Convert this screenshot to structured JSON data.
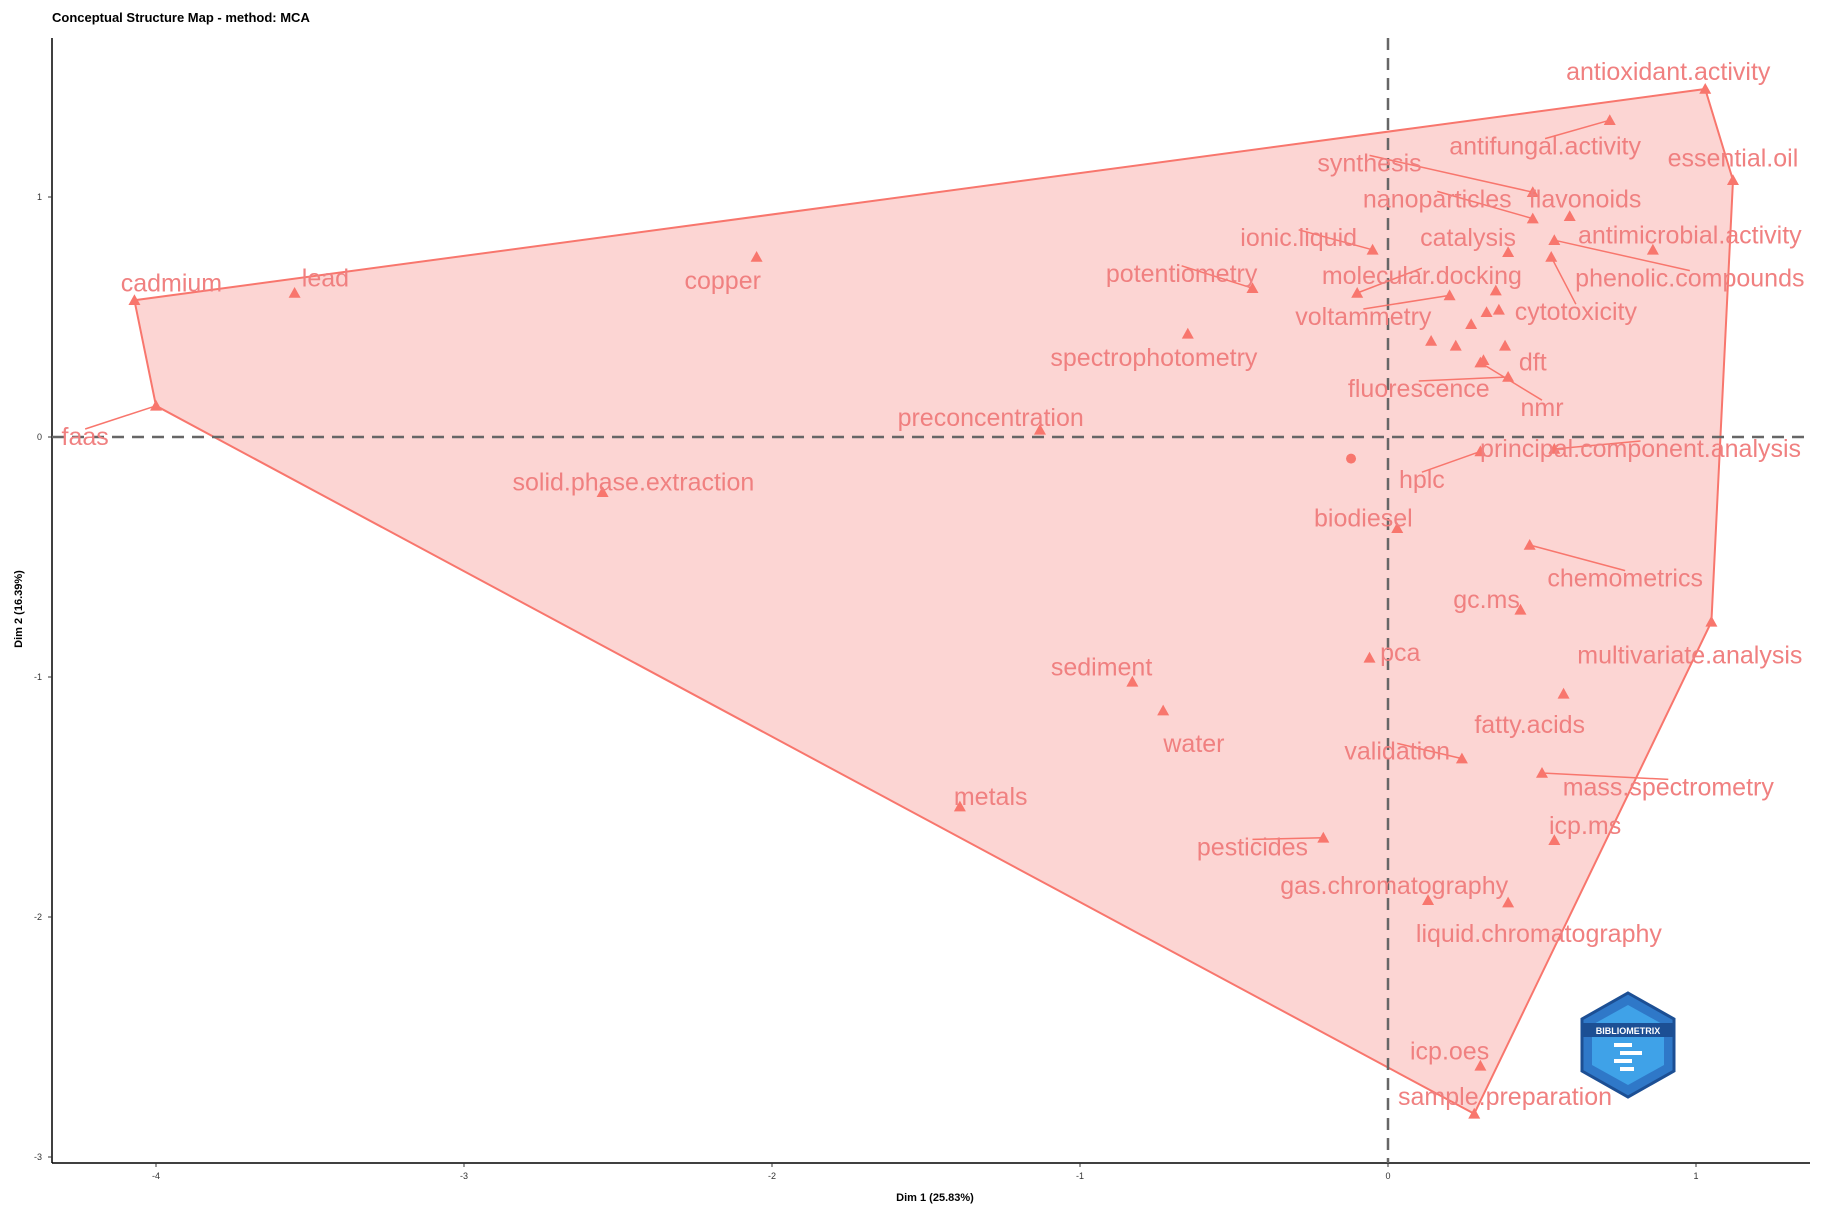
{
  "chart_data": {
    "type": "scatter",
    "title": "Conceptual Structure Map - method: MCA",
    "xlabel": "Dim 1 (25.83%)",
    "ylabel": "Dim 2 (16.39%)",
    "xlim": [
      -4.3,
      1.4
    ],
    "ylim": [
      -3.0,
      1.65
    ],
    "xticks": [
      -4,
      -3,
      -2,
      -1,
      0,
      1
    ],
    "yticks": [
      -3,
      -2,
      -1,
      0,
      1
    ],
    "grid": false,
    "hull_color": "#F8766D",
    "fill_color": "#FCD3D1",
    "label_color": "#F08080",
    "centroid": {
      "x": -0.12,
      "y": -0.09
    },
    "hull": [
      [
        -4.07,
        0.57
      ],
      [
        -4.0,
        0.13
      ],
      [
        0.28,
        -2.82
      ],
      [
        1.05,
        -0.77
      ],
      [
        1.12,
        1.07
      ],
      [
        1.03,
        1.45
      ]
    ],
    "points": [
      {
        "label": "antioxidant.activity",
        "x": 1.03,
        "y": 1.45,
        "lx": 0.91,
        "ly": 1.52
      },
      {
        "label": "essential.oil",
        "x": 1.12,
        "y": 1.07,
        "lx": 1.12,
        "ly": 1.16
      },
      {
        "label": "antifungal.activity",
        "x": 0.72,
        "y": 1.32,
        "lx": 0.51,
        "ly": 1.21
      },
      {
        "label": "synthesis",
        "x": 0.47,
        "y": 1.02,
        "lx": -0.06,
        "ly": 1.14
      },
      {
        "label": "nanoparticles",
        "x": 0.47,
        "y": 0.91,
        "lx": 0.16,
        "ly": 0.99
      },
      {
        "label": "flavonoids",
        "x": 0.59,
        "y": 0.92,
        "lx": 0.64,
        "ly": 0.99
      },
      {
        "label": "antimicrobial.activity",
        "x": 0.86,
        "y": 0.78,
        "lx": 0.98,
        "ly": 0.84
      },
      {
        "label": "ionic.liquid",
        "x": -0.05,
        "y": 0.78,
        "lx": -0.29,
        "ly": 0.83
      },
      {
        "label": "catalysis",
        "x": 0.39,
        "y": 0.77,
        "lx": 0.26,
        "ly": 0.83
      },
      {
        "label": "phenolic.compounds",
        "x": 0.54,
        "y": 0.82,
        "lx": 0.98,
        "ly": 0.66
      },
      {
        "label": "potentiometry",
        "x": -0.44,
        "y": 0.62,
        "lx": -0.67,
        "ly": 0.68
      },
      {
        "label": "molecular.docking",
        "x": -0.1,
        "y": 0.6,
        "lx": 0.11,
        "ly": 0.67
      },
      {
        "label": "copper",
        "x": -2.05,
        "y": 0.75,
        "lx": -2.16,
        "ly": 0.65
      },
      {
        "label": "lead",
        "x": -3.55,
        "y": 0.6,
        "lx": -3.45,
        "ly": 0.66
      },
      {
        "label": "cadmium",
        "x": -4.07,
        "y": 0.57,
        "lx": -3.95,
        "ly": 0.64
      },
      {
        "label": "voltammetry",
        "x": 0.2,
        "y": 0.59,
        "lx": -0.08,
        "ly": 0.5
      },
      {
        "label": "cytotoxicity",
        "x": 0.53,
        "y": 0.75,
        "lx": 0.61,
        "ly": 0.52
      },
      {
        "label": "spectrophotometry",
        "x": -0.65,
        "y": 0.43,
        "lx": -0.76,
        "ly": 0.33
      },
      {
        "label": "dft",
        "x": 0.38,
        "y": 0.38,
        "lx": 0.47,
        "ly": 0.31
      },
      {
        "label": "fluorescence",
        "x": 0.39,
        "y": 0.25,
        "lx": 0.1,
        "ly": 0.2
      },
      {
        "label": "nmr",
        "x": 0.3,
        "y": 0.31,
        "lx": 0.5,
        "ly": 0.12
      },
      {
        "label": "preconcentration",
        "x": -1.13,
        "y": 0.03,
        "lx": -1.29,
        "ly": 0.08
      },
      {
        "label": "faas",
        "x": -4.0,
        "y": 0.13,
        "lx": -4.23,
        "ly": 0.0
      },
      {
        "label": "principal.component.analysis",
        "x": 0.54,
        "y": -0.05,
        "lx": 0.82,
        "ly": -0.05
      },
      {
        "label": "hplc",
        "x": 0.3,
        "y": -0.06,
        "lx": 0.11,
        "ly": -0.18
      },
      {
        "label": "solid.phase.extraction",
        "x": -2.55,
        "y": -0.23,
        "lx": -2.45,
        "ly": -0.19
      },
      {
        "label": "biodiesel",
        "x": 0.03,
        "y": -0.38,
        "lx": -0.08,
        "ly": -0.34
      },
      {
        "label": "chemometrics",
        "x": 0.46,
        "y": -0.45,
        "lx": 0.77,
        "ly": -0.59
      },
      {
        "label": "gc.ms",
        "x": 0.43,
        "y": -0.72,
        "lx": 0.32,
        "ly": -0.68
      },
      {
        "label": "multivariate.analysis",
        "x": 1.05,
        "y": -0.77,
        "lx": 0.98,
        "ly": -0.91
      },
      {
        "label": "pca",
        "x": -0.06,
        "y": -0.92,
        "lx": 0.04,
        "ly": -0.9
      },
      {
        "label": "sediment",
        "x": -0.83,
        "y": -1.02,
        "lx": -0.93,
        "ly": -0.96
      },
      {
        "label": "water",
        "x": -0.73,
        "y": -1.14,
        "lx": -0.63,
        "ly": -1.28
      },
      {
        "label": "fatty.acids",
        "x": 0.57,
        "y": -1.07,
        "lx": 0.46,
        "ly": -1.2
      },
      {
        "label": "validation",
        "x": 0.24,
        "y": -1.34,
        "lx": 0.03,
        "ly": -1.31
      },
      {
        "label": "mass.spectrometry",
        "x": 0.5,
        "y": -1.4,
        "lx": 0.91,
        "ly": -1.46
      },
      {
        "label": "metals",
        "x": -1.39,
        "y": -1.54,
        "lx": -1.29,
        "ly": -1.5
      },
      {
        "label": "icp.ms",
        "x": 0.54,
        "y": -1.68,
        "lx": 0.64,
        "ly": -1.62
      },
      {
        "label": "pesticides",
        "x": -0.21,
        "y": -1.67,
        "lx": -0.44,
        "ly": -1.71
      },
      {
        "label": "gas.chromatography",
        "x": 0.13,
        "y": -1.93,
        "lx": 0.02,
        "ly": -1.87
      },
      {
        "label": "liquid.chromatography",
        "x": 0.39,
        "y": -1.94,
        "lx": 0.49,
        "ly": -2.07
      },
      {
        "label": "icp.oes",
        "x": 0.3,
        "y": -2.62,
        "lx": 0.2,
        "ly": -2.56
      },
      {
        "label": "sample.preparation",
        "x": 0.28,
        "y": -2.82,
        "lx": 0.38,
        "ly": -2.75
      }
    ],
    "unlabeled_points": [
      {
        "x": 0.14,
        "y": 0.4
      },
      {
        "x": 0.22,
        "y": 0.38
      },
      {
        "x": 0.31,
        "y": 0.32
      },
      {
        "x": 0.27,
        "y": 0.47
      },
      {
        "x": 0.36,
        "y": 0.53
      },
      {
        "x": 0.32,
        "y": 0.52
      },
      {
        "x": 0.35,
        "y": 0.61
      }
    ]
  },
  "logo": {
    "text": "BIBLIOMETRIX"
  }
}
